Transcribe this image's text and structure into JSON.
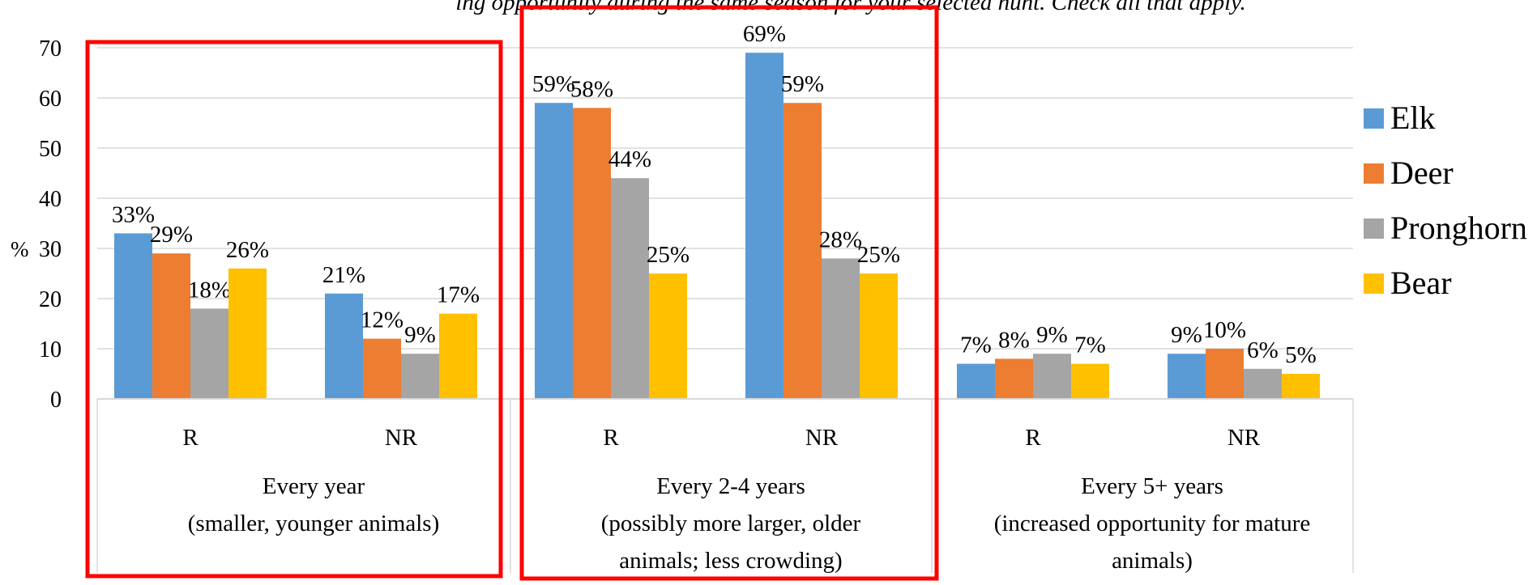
{
  "chart_data": {
    "type": "bar",
    "title": "ing opportunity during the same season for your selected hunt. Check all that apply.",
    "ylabel": "%",
    "ylim": [
      0,
      70
    ],
    "yticks": [
      0,
      10,
      20,
      30,
      40,
      50,
      60,
      70
    ],
    "grid": true,
    "legend_position": "right",
    "legend": [
      "Elk",
      "Deer",
      "Pronghorn",
      "Bear"
    ],
    "colors": {
      "Elk": "#5B9BD5",
      "Deer": "#ED7D31",
      "Pronghorn": "#A5A5A5",
      "Bear": "#FFC000",
      "highlight": "#FF0000"
    },
    "groups": [
      {
        "label_line1": "Every year",
        "label_line2": "(smaller, younger animals)",
        "label_line3": "",
        "highlighted": true,
        "categories": [
          "R",
          "NR"
        ],
        "series": [
          {
            "name": "Elk",
            "values": [
              33,
              21
            ]
          },
          {
            "name": "Deer",
            "values": [
              29,
              12
            ]
          },
          {
            "name": "Pronghorn",
            "values": [
              18,
              9
            ]
          },
          {
            "name": "Bear",
            "values": [
              26,
              17
            ]
          }
        ]
      },
      {
        "label_line1": "Every 2-4 years",
        "label_line2": "(possibly more larger, older",
        "label_line3": "animals; less crowding)",
        "highlighted": true,
        "categories": [
          "R",
          "NR"
        ],
        "series": [
          {
            "name": "Elk",
            "values": [
              59,
              69
            ]
          },
          {
            "name": "Deer",
            "values": [
              58,
              59
            ]
          },
          {
            "name": "Pronghorn",
            "values": [
              44,
              28
            ]
          },
          {
            "name": "Bear",
            "values": [
              25,
              25
            ]
          }
        ]
      },
      {
        "label_line1": "Every 5+ years",
        "label_line2": "(increased opportunity for mature",
        "label_line3": "animals)",
        "highlighted": false,
        "categories": [
          "R",
          "NR"
        ],
        "series": [
          {
            "name": "Elk",
            "values": [
              7,
              9
            ]
          },
          {
            "name": "Deer",
            "values": [
              8,
              10
            ]
          },
          {
            "name": "Pronghorn",
            "values": [
              9,
              6
            ]
          },
          {
            "name": "Bear",
            "values": [
              7,
              5
            ]
          }
        ]
      }
    ]
  }
}
